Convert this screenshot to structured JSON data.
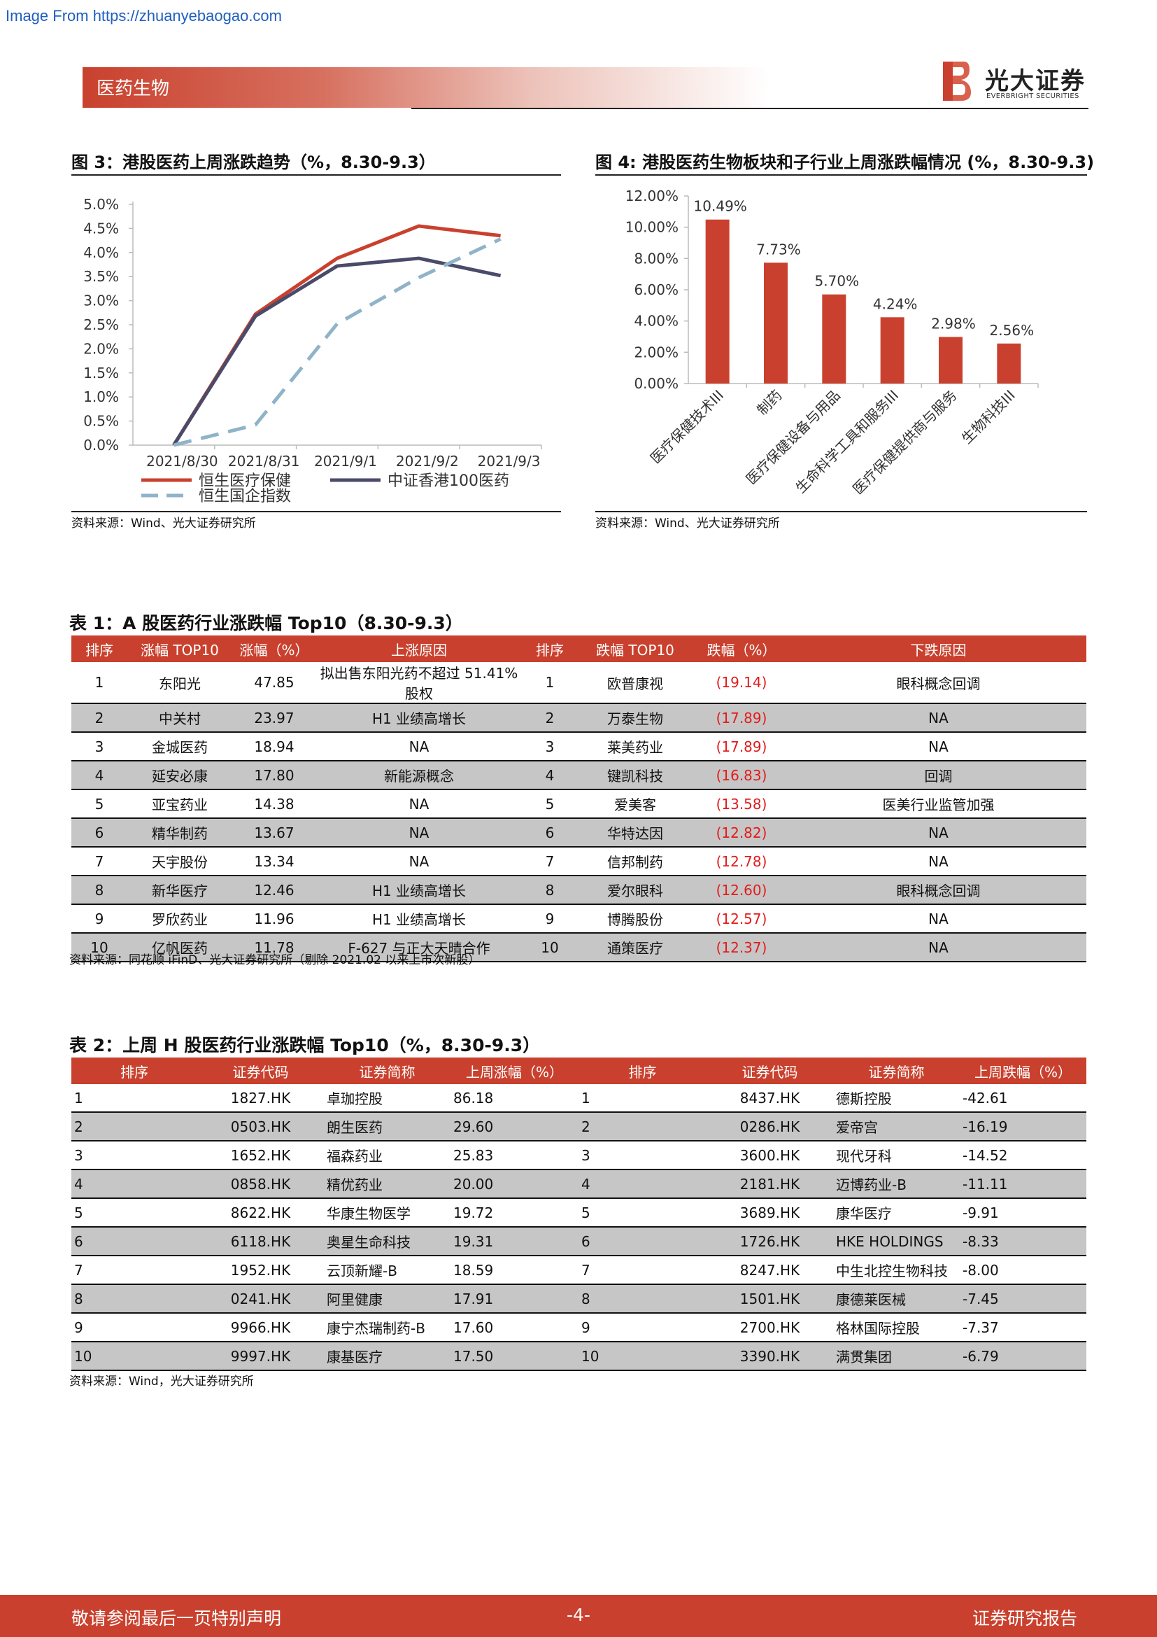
{
  "watermark": "Image From https://zhuanyebaogao.com",
  "header": {
    "section": "医药生物",
    "brand_cn": "光大证券",
    "brand_en": "EVERBRIGHT SECURITIES"
  },
  "fig3": {
    "title": "图 3：港股医药上周涨跌趋势（%，8.30-9.3）",
    "source": "资料来源：Wind、光大证券研究所"
  },
  "fig4": {
    "title": "图 4: 港股医药生物板块和子行业上周涨跌幅情况 (%，8.30-9.3)",
    "source": "资料来源：Wind、光大证券研究所"
  },
  "chart_data": [
    {
      "type": "line",
      "x": [
        "2021/8/30",
        "2021/8/31",
        "2021/9/1",
        "2021/9/2",
        "2021/9/3"
      ],
      "ylim": [
        0,
        5
      ],
      "yticks": [
        "0.0%",
        "0.5%",
        "1.0%",
        "1.5%",
        "2.0%",
        "2.5%",
        "3.0%",
        "3.5%",
        "4.0%",
        "4.5%",
        "5.0%"
      ],
      "legend": "bottom",
      "series": [
        {
          "name": "恒生医疗保健",
          "color": "#c9412e",
          "style": "solid",
          "values": [
            0.0,
            2.72,
            3.88,
            4.55,
            4.35
          ]
        },
        {
          "name": "中证香港100医药",
          "color": "#4a4a6a",
          "style": "solid",
          "values": [
            0.0,
            2.68,
            3.72,
            3.88,
            3.52
          ]
        },
        {
          "name": "恒生国企指数",
          "color": "#8fb3c9",
          "style": "dashed",
          "values": [
            0.0,
            0.42,
            2.52,
            3.48,
            4.28
          ]
        }
      ]
    },
    {
      "type": "bar",
      "categories": [
        "医疗保健技术III",
        "制药",
        "医疗保健设备与用品",
        "生命科学工具和服务III",
        "医疗保健提供商与服务",
        "生物科技III"
      ],
      "values": [
        10.49,
        7.73,
        5.7,
        4.24,
        2.98,
        2.56
      ],
      "labels": [
        "10.49%",
        "7.73%",
        "5.70%",
        "4.24%",
        "2.98%",
        "2.56%"
      ],
      "ylim": [
        0,
        12
      ],
      "yticks": [
        "0.00%",
        "2.00%",
        "4.00%",
        "6.00%",
        "8.00%",
        "10.00%",
        "12.00%"
      ],
      "color": "#c9412e"
    }
  ],
  "table1": {
    "title": "表 1：A 股医药行业涨跌幅 Top10（8.30-9.3）",
    "headers": [
      "排序",
      "涨幅 TOP10",
      "涨幅（%）",
      "上涨原因",
      "排序",
      "跌幅 TOP10",
      "跌幅（%）",
      "下跌原因"
    ],
    "rows": [
      [
        "1",
        "东阳光",
        "47.85",
        "拟出售东阳光药不超过 51.41%股权",
        "1",
        "欧普康视",
        "(19.14)",
        "眼科概念回调"
      ],
      [
        "2",
        "中关村",
        "23.97",
        "H1 业绩高增长",
        "2",
        "万泰生物",
        "(17.89)",
        "NA"
      ],
      [
        "3",
        "金城医药",
        "18.94",
        "NA",
        "3",
        "莱美药业",
        "(17.89)",
        "NA"
      ],
      [
        "4",
        "延安必康",
        "17.80",
        "新能源概念",
        "4",
        "键凯科技",
        "(16.83)",
        "回调"
      ],
      [
        "5",
        "亚宝药业",
        "14.38",
        "NA",
        "5",
        "爱美客",
        "(13.58)",
        "医美行业监管加强"
      ],
      [
        "6",
        "精华制药",
        "13.67",
        "NA",
        "6",
        "华特达因",
        "(12.82)",
        "NA"
      ],
      [
        "7",
        "天宇股份",
        "13.34",
        "NA",
        "7",
        "信邦制药",
        "(12.78)",
        "NA"
      ],
      [
        "8",
        "新华医疗",
        "12.46",
        "H1 业绩高增长",
        "8",
        "爱尔眼科",
        "(12.60)",
        "眼科概念回调"
      ],
      [
        "9",
        "罗欣药业",
        "11.96",
        "H1 业绩高增长",
        "9",
        "博腾股份",
        "(12.57)",
        "NA"
      ],
      [
        "10",
        "亿帆医药",
        "11.78",
        "F-627 与正大天晴合作",
        "10",
        "通策医疗",
        "(12.37)",
        "NA"
      ]
    ],
    "source": "资料来源：同花顺 iFinD、光大证券研究所（剔除 2021.02 以来上市次新股）"
  },
  "table2": {
    "title": "表 2：上周 H 股医药行业涨跌幅 Top10（%，8.30-9.3）",
    "headers": [
      "排序",
      "证券代码",
      "证券简称",
      "上周涨幅（%）",
      "排序",
      "证券代码",
      "证券简称",
      "上周跌幅（%）"
    ],
    "rows": [
      [
        "1",
        "1827.HK",
        "卓珈控股",
        "86.18",
        "1",
        "8437.HK",
        "德斯控股",
        "-42.61"
      ],
      [
        "2",
        "0503.HK",
        "朗生医药",
        "29.60",
        "2",
        "0286.HK",
        "爱帝宫",
        "-16.19"
      ],
      [
        "3",
        "1652.HK",
        "福森药业",
        "25.83",
        "3",
        "3600.HK",
        "现代牙科",
        "-14.52"
      ],
      [
        "4",
        "0858.HK",
        "精优药业",
        "20.00",
        "4",
        "2181.HK",
        "迈博药业-B",
        "-11.11"
      ],
      [
        "5",
        "8622.HK",
        "华康生物医学",
        "19.72",
        "5",
        "3689.HK",
        "康华医疗",
        "-9.91"
      ],
      [
        "6",
        "6118.HK",
        "奥星生命科技",
        "19.31",
        "6",
        "1726.HK",
        "HKE HOLDINGS",
        "-8.33"
      ],
      [
        "7",
        "1952.HK",
        "云顶新耀-B",
        "18.59",
        "7",
        "8247.HK",
        "中生北控生物科技",
        "-8.00"
      ],
      [
        "8",
        "0241.HK",
        "阿里健康",
        "17.91",
        "8",
        "1501.HK",
        "康德莱医械",
        "-7.45"
      ],
      [
        "9",
        "9966.HK",
        "康宁杰瑞制药-B",
        "17.60",
        "9",
        "2700.HK",
        "格林国际控股",
        "-7.37"
      ],
      [
        "10",
        "9997.HK",
        "康基医疗",
        "17.50",
        "10",
        "3390.HK",
        "满贯集团",
        "-6.79"
      ]
    ],
    "source": "资料来源：Wind，光大证券研究所"
  },
  "footer": {
    "left": "敬请参阅最后一页特别声明",
    "page": "-4-",
    "right": "证券研究报告"
  }
}
